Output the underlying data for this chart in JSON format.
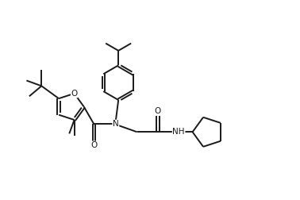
{
  "background_color": "#ffffff",
  "line_color": "#1a1a1a",
  "line_width": 1.4,
  "figsize": [
    3.78,
    2.52
  ],
  "dpi": 100,
  "xlim": [
    0,
    11
  ],
  "ylim": [
    0,
    7.5
  ]
}
